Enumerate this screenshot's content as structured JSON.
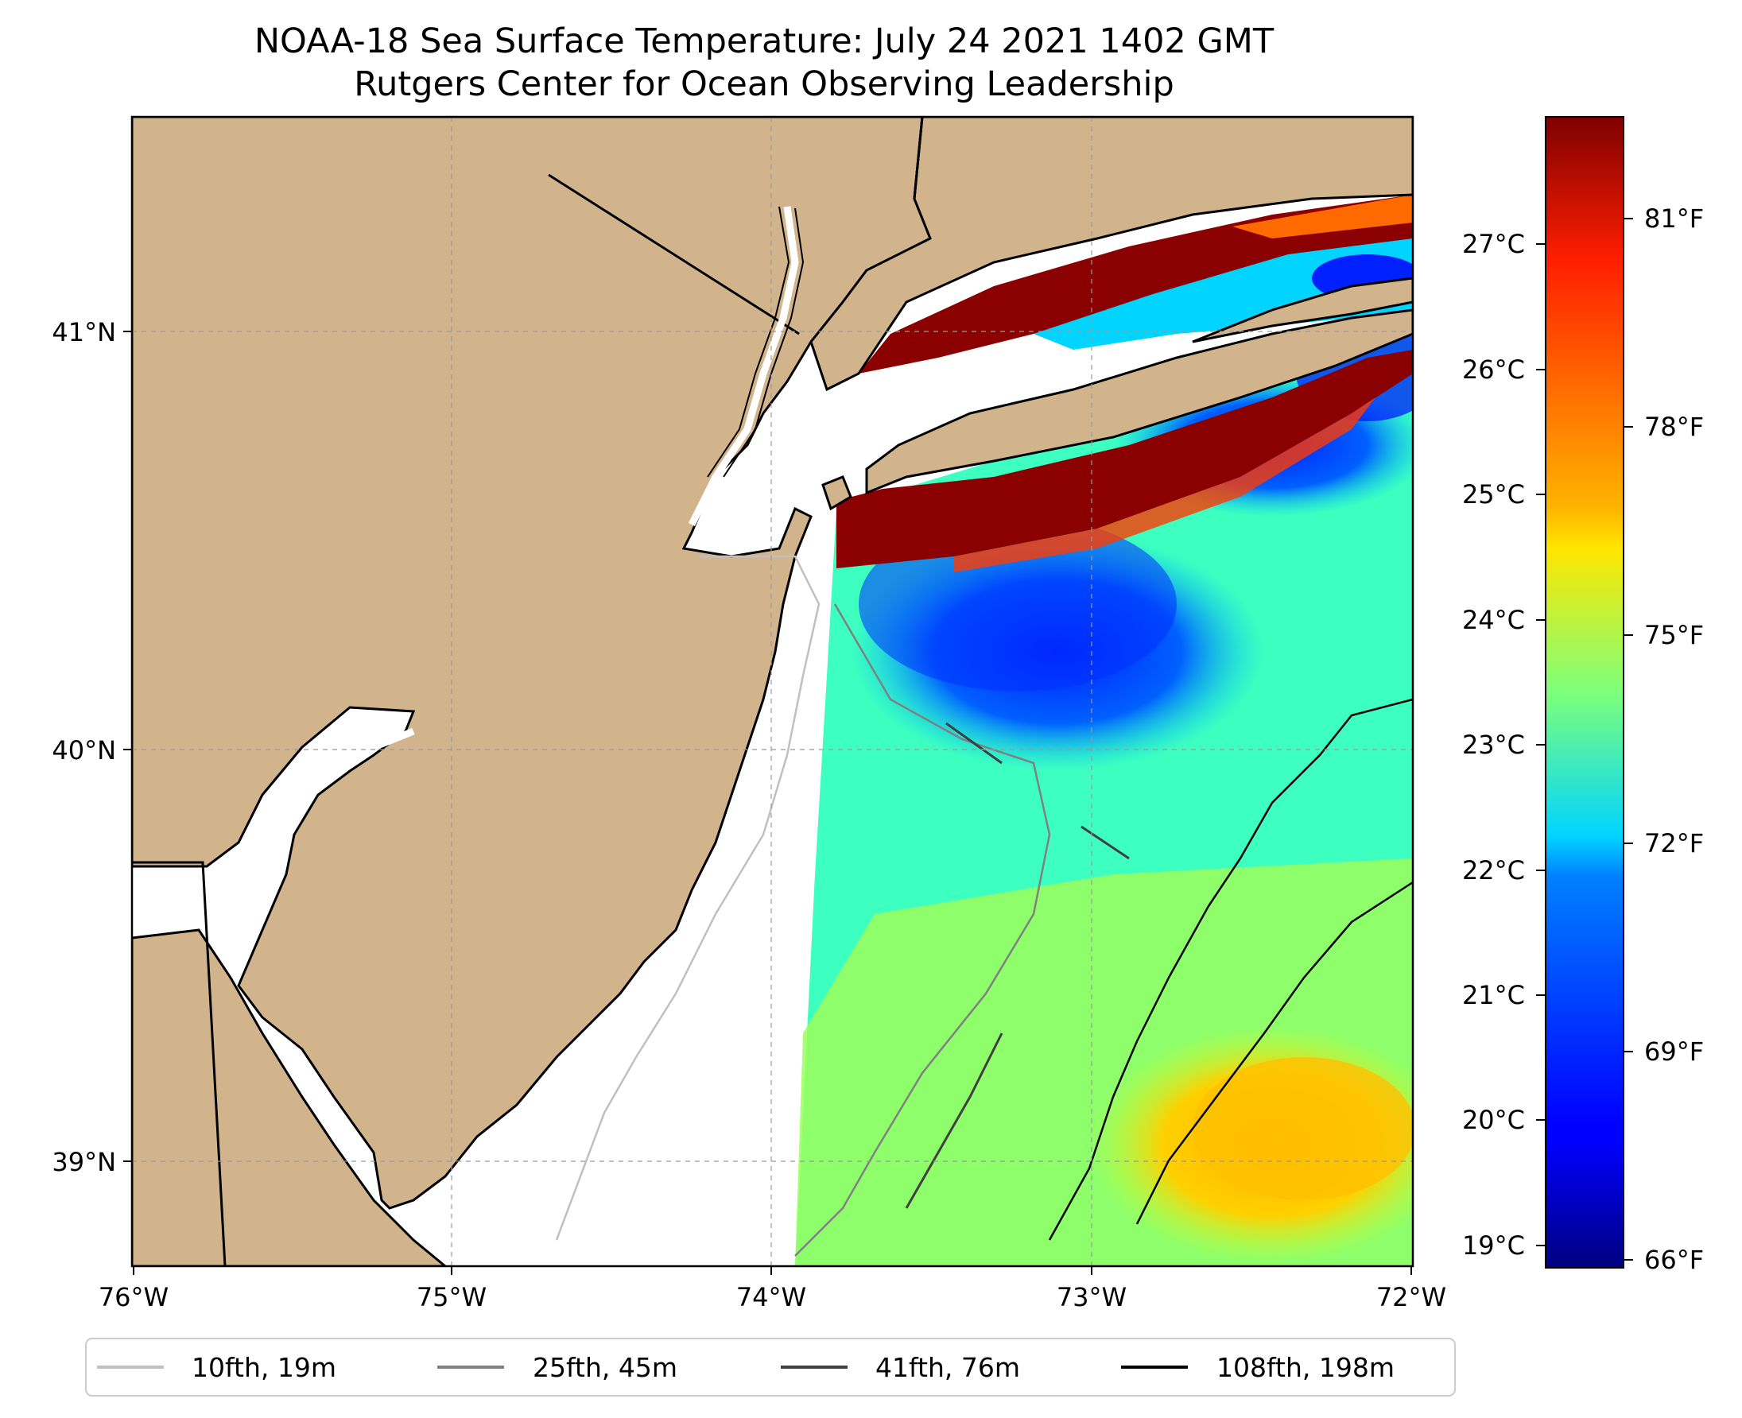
{
  "title": {
    "line1": "NOAA-18 Sea Surface Temperature: July 24 2021 1402 GMT",
    "line2": "Rutgers Center for Ocean Observing Leadership"
  },
  "map": {
    "lon_ticks": [
      "76°W",
      "75°W",
      "74°W",
      "73°W",
      "72°W"
    ],
    "lat_ticks": [
      "41°N",
      "40°N",
      "39°N"
    ],
    "land_color": "#D2B48C",
    "ocean_color": "#ffffff",
    "gridlines": "dashed"
  },
  "colorbar": {
    "cmap": "jet",
    "celsius_ticks": [
      "27°C",
      "26°C",
      "25°C",
      "24°C",
      "23°C",
      "22°C",
      "21°C",
      "20°C",
      "19°C"
    ],
    "fahrenheit_ticks": [
      "81°F",
      "78°F",
      "75°F",
      "72°F",
      "69°F",
      "66°F"
    ]
  },
  "legend": {
    "items": [
      {
        "label": "10fth, 19m",
        "color": "#c0c0c0"
      },
      {
        "label": "25fth, 45m",
        "color": "#808080"
      },
      {
        "label": "41fth, 76m",
        "color": "#404040"
      },
      {
        "label": "108fth, 198m",
        "color": "#000000"
      }
    ]
  }
}
